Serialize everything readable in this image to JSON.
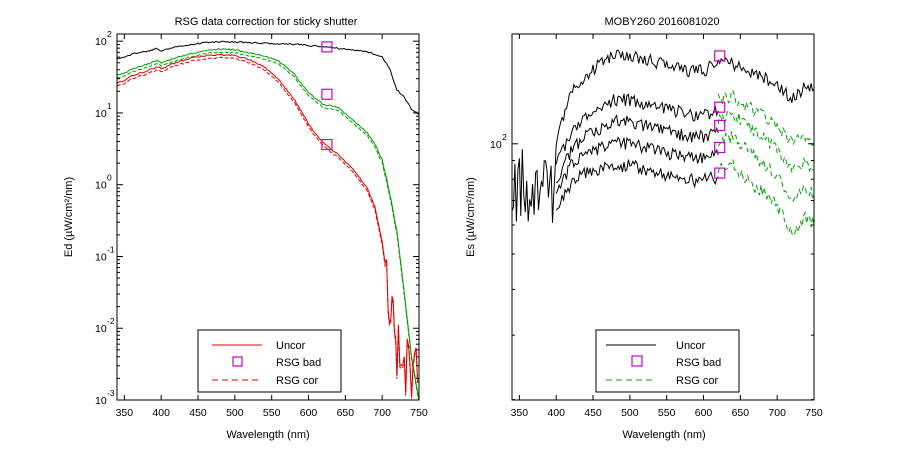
{
  "colors": {
    "uncor_left": "#e00000",
    "uncor_right": "#000000",
    "bad": "#cc00cc",
    "cor": "#00a000",
    "axes": "#000000"
  },
  "chart_data": [
    {
      "type": "line",
      "title": "RSG data correction for sticky shutter",
      "xlabel": "Wavelength (nm)",
      "ylabel": "Ed (µW/cm²/nm)",
      "xlim": [
        340,
        750
      ],
      "ylim_log10": [
        -3,
        2.1
      ],
      "yscale": "log",
      "x_ticks": [
        350,
        400,
        450,
        500,
        550,
        600,
        650,
        700,
        750
      ],
      "y_tick_exponents": [
        -3,
        -2,
        -1,
        0,
        1,
        2
      ],
      "y_tick_base": "10",
      "legend": {
        "position": "bottom-center",
        "entries": [
          "Uncor",
          "RSG bad",
          "RSG cor"
        ]
      },
      "series": [
        {
          "name": "Uncor (top)",
          "style": "black-solid",
          "x": [
            340,
            350,
            360,
            380,
            395,
            400,
            420,
            440,
            460,
            480,
            500,
            520,
            540,
            560,
            580,
            600,
            620,
            640,
            660,
            680,
            700,
            710,
            720,
            730,
            740,
            750
          ],
          "log10_y": [
            1.75,
            1.78,
            1.82,
            1.86,
            1.9,
            1.86,
            1.92,
            1.95,
            1.98,
            1.99,
            1.99,
            1.98,
            1.97,
            1.96,
            1.96,
            1.94,
            1.92,
            1.9,
            1.88,
            1.85,
            1.78,
            1.62,
            1.32,
            1.22,
            1.05,
            0.98
          ]
        },
        {
          "name": "RSG cor (middle)",
          "style": "green",
          "x": [
            340,
            350,
            360,
            380,
            395,
            400,
            420,
            440,
            460,
            480,
            500,
            520,
            540,
            560,
            580,
            600,
            610,
            620,
            640,
            660,
            680,
            690,
            700,
            710,
            720,
            730,
            740,
            750
          ],
          "log10_y": [
            1.52,
            1.56,
            1.61,
            1.68,
            1.73,
            1.69,
            1.77,
            1.82,
            1.87,
            1.89,
            1.88,
            1.84,
            1.79,
            1.72,
            1.55,
            1.28,
            1.2,
            1.12,
            1.08,
            0.9,
            0.72,
            0.56,
            0.35,
            -0.1,
            -0.65,
            -1.5,
            -2.4,
            -3.0
          ]
        },
        {
          "name": "Uncor (lower)",
          "style": "red",
          "x": [
            340,
            350,
            360,
            380,
            395,
            400,
            420,
            440,
            460,
            480,
            500,
            520,
            540,
            560,
            580,
            600,
            610,
            620,
            640,
            660,
            680,
            690,
            700,
            710,
            715,
            720,
            730,
            740,
            750
          ],
          "log10_y": [
            1.42,
            1.45,
            1.52,
            1.58,
            1.64,
            1.62,
            1.7,
            1.76,
            1.8,
            1.81,
            1.8,
            1.74,
            1.64,
            1.46,
            1.2,
            0.85,
            0.7,
            0.58,
            0.42,
            0.22,
            -0.05,
            -0.3,
            -0.8,
            -1.55,
            -2.0,
            -2.25,
            -2.5,
            -2.6,
            -2.7
          ]
        }
      ],
      "bad_points": [
        {
          "x": 625,
          "log10_y": 1.92
        },
        {
          "x": 625,
          "log10_y": 1.26
        },
        {
          "x": 625,
          "log10_y": 0.56
        }
      ]
    },
    {
      "type": "line",
      "title": "MOBY260  2016081020",
      "xlabel": "Wavelength (nm)",
      "ylabel": "Es (µW/cm²/nm)",
      "xlim": [
        340,
        750
      ],
      "ylim_log10": [
        1.3,
        2.3
      ],
      "yscale": "log",
      "x_ticks": [
        350,
        400,
        450,
        500,
        550,
        600,
        650,
        700,
        750
      ],
      "y_tick_exponents": [
        2
      ],
      "y_tick_base": "10",
      "legend": {
        "position": "bottom-center",
        "entries": [
          "Uncor",
          "RSG bad",
          "RSG cor"
        ]
      },
      "series": [
        {
          "name": "Uncor top",
          "style": "black-solid",
          "x": [
            340,
            360,
            380,
            395,
            400,
            420,
            440,
            460,
            480,
            500,
            520,
            540,
            560,
            580,
            600,
            620,
            640,
            660,
            680,
            700,
            720,
            740,
            750
          ],
          "log10_y": [
            1.9,
            1.88,
            1.92,
            1.8,
            2.0,
            2.14,
            2.18,
            2.22,
            2.24,
            2.24,
            2.23,
            2.22,
            2.21,
            2.2,
            2.2,
            2.22,
            2.22,
            2.2,
            2.18,
            2.16,
            2.12,
            2.16,
            2.15
          ]
        },
        {
          "name": "Uncor 2",
          "style": "black-solid",
          "x": [
            400,
            420,
            440,
            460,
            480,
            500,
            520,
            540,
            560,
            580,
            600,
            620
          ],
          "log10_y": [
            1.94,
            2.03,
            2.07,
            2.1,
            2.12,
            2.12,
            2.11,
            2.1,
            2.09,
            2.08,
            2.08,
            2.09
          ]
        },
        {
          "name": "Uncor 3",
          "style": "black-solid",
          "x": [
            400,
            420,
            440,
            460,
            480,
            500,
            520,
            540,
            560,
            580,
            600,
            620
          ],
          "log10_y": [
            1.9,
            1.98,
            2.02,
            2.04,
            2.06,
            2.06,
            2.05,
            2.04,
            2.03,
            2.02,
            2.02,
            2.03
          ]
        },
        {
          "name": "Uncor 4",
          "style": "black-solid",
          "x": [
            400,
            420,
            440,
            460,
            480,
            500,
            520,
            540,
            560,
            580,
            600,
            620
          ],
          "log10_y": [
            1.86,
            1.94,
            1.97,
            1.99,
            2.0,
            2.0,
            1.99,
            1.98,
            1.97,
            1.96,
            1.96,
            1.97
          ]
        },
        {
          "name": "Uncor 5",
          "style": "black-solid",
          "x": [
            400,
            420,
            440,
            460,
            480,
            500,
            520,
            540,
            560,
            580,
            600,
            620
          ],
          "log10_y": [
            1.82,
            1.89,
            1.92,
            1.93,
            1.94,
            1.94,
            1.93,
            1.92,
            1.91,
            1.9,
            1.9,
            1.91
          ]
        },
        {
          "name": "RSG cor 1",
          "style": "green-dashed",
          "x": [
            620,
            640,
            660,
            680,
            700,
            720,
            740,
            750
          ],
          "log10_y": [
            2.12,
            2.13,
            2.1,
            2.08,
            2.05,
            2.0,
            2.02,
            2.0
          ]
        },
        {
          "name": "RSG cor 2",
          "style": "green-dashed",
          "x": [
            620,
            640,
            660,
            680,
            700,
            720,
            740,
            750
          ],
          "log10_y": [
            2.07,
            2.08,
            2.05,
            2.02,
            1.98,
            1.92,
            1.95,
            1.93
          ]
        },
        {
          "name": "RSG cor 3",
          "style": "green-dashed",
          "x": [
            620,
            640,
            660,
            680,
            700,
            720,
            740,
            750
          ],
          "log10_y": [
            2.01,
            2.02,
            1.98,
            1.95,
            1.91,
            1.85,
            1.88,
            1.86
          ]
        },
        {
          "name": "RSG cor 4",
          "style": "green-dashed",
          "x": [
            620,
            640,
            660,
            680,
            700,
            720,
            740,
            750
          ],
          "log10_y": [
            1.93,
            1.94,
            1.9,
            1.87,
            1.83,
            1.76,
            1.8,
            1.78
          ]
        }
      ],
      "bad_points": [
        {
          "x": 622,
          "log10_y": 2.24
        },
        {
          "x": 622,
          "log10_y": 2.1
        },
        {
          "x": 622,
          "log10_y": 2.05
        },
        {
          "x": 622,
          "log10_y": 1.99
        },
        {
          "x": 622,
          "log10_y": 1.92
        }
      ]
    }
  ]
}
